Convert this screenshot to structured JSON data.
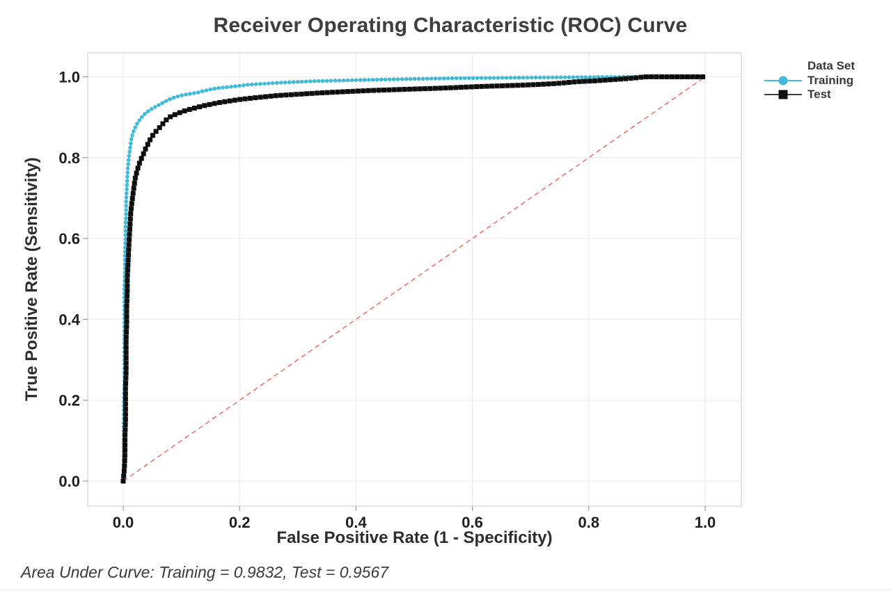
{
  "legend": {
    "title": "Data Set",
    "items": [
      {
        "label": "Training",
        "color": "#41b9d9",
        "line_color": "#41b9d9",
        "marker": "circle"
      },
      {
        "label": "Test",
        "color": "#111111",
        "line_color": "#3f3f3f",
        "marker": "square"
      }
    ]
  },
  "chart_data": {
    "type": "line",
    "title": "Receiver Operating Characteristic (ROC) Curve",
    "xlabel": "False Positive Rate (1 - Specificity)",
    "ylabel": "True Positive Rate (Sensitivity)",
    "annotation": "Area Under Curve: Training = 0.9832, Test = 0.9567",
    "auc": {
      "Training": 0.9832,
      "Test": 0.9567
    },
    "xlim": [
      0,
      1
    ],
    "ylim": [
      0,
      1
    ],
    "grid": true,
    "legend_position": "right",
    "xticks": [
      0.0,
      0.2,
      0.4,
      0.6,
      0.8,
      1.0
    ],
    "yticks": [
      0.0,
      0.2,
      0.4,
      0.6,
      0.8,
      1.0
    ],
    "xtick_labels": [
      "0.0",
      "0.2",
      "0.4",
      "0.6",
      "0.8",
      "1.0"
    ],
    "ytick_labels": [
      "0.0",
      "0.2",
      "0.4",
      "0.6",
      "0.8",
      "1.0"
    ],
    "reference_line": {
      "from": [
        0,
        0
      ],
      "to": [
        1,
        1
      ],
      "style": "dashed",
      "color": "#ee5451"
    },
    "colors": {
      "grid": "#eaeaea",
      "frame": "#c8c8c8",
      "tick": "#9a9a9a",
      "training": "#41b9d9",
      "test": "#0d0d0d",
      "reference": "#ee5451"
    },
    "series": [
      {
        "name": "Training",
        "color": "#41b9d9",
        "marker": "circle",
        "points": [
          [
            0,
            0
          ],
          [
            0.001,
            0.04
          ],
          [
            0.001,
            0.09
          ],
          [
            0.001,
            0.14
          ],
          [
            0.001,
            0.19
          ],
          [
            0.002,
            0.24
          ],
          [
            0.002,
            0.29
          ],
          [
            0.002,
            0.34
          ],
          [
            0.002,
            0.39
          ],
          [
            0.002,
            0.44
          ],
          [
            0.002,
            0.48
          ],
          [
            0.003,
            0.52
          ],
          [
            0.003,
            0.56
          ],
          [
            0.004,
            0.6
          ],
          [
            0.004,
            0.63
          ],
          [
            0.005,
            0.66
          ],
          [
            0.005,
            0.69
          ],
          [
            0.006,
            0.72
          ],
          [
            0.007,
            0.75
          ],
          [
            0.008,
            0.775
          ],
          [
            0.009,
            0.79
          ],
          [
            0.01,
            0.805
          ],
          [
            0.012,
            0.825
          ],
          [
            0.014,
            0.845
          ],
          [
            0.016,
            0.858
          ],
          [
            0.019,
            0.87
          ],
          [
            0.023,
            0.882
          ],
          [
            0.028,
            0.893
          ],
          [
            0.033,
            0.902
          ],
          [
            0.039,
            0.911
          ],
          [
            0.046,
            0.918
          ],
          [
            0.053,
            0.924
          ],
          [
            0.062,
            0.931
          ],
          [
            0.072,
            0.939
          ],
          [
            0.082,
            0.946
          ],
          [
            0.092,
            0.951
          ],
          [
            0.103,
            0.955
          ],
          [
            0.115,
            0.958
          ],
          [
            0.128,
            0.961
          ],
          [
            0.138,
            0.965
          ],
          [
            0.15,
            0.969
          ],
          [
            0.163,
            0.972
          ],
          [
            0.178,
            0.9745
          ],
          [
            0.195,
            0.977
          ],
          [
            0.215,
            0.9805
          ],
          [
            0.235,
            0.9825
          ],
          [
            0.258,
            0.9845
          ],
          [
            0.282,
            0.9865
          ],
          [
            0.307,
            0.988
          ],
          [
            0.333,
            0.9895
          ],
          [
            0.36,
            0.9905
          ],
          [
            0.39,
            0.9915
          ],
          [
            0.42,
            0.9925
          ],
          [
            0.455,
            0.9935
          ],
          [
            0.49,
            0.9945
          ],
          [
            0.53,
            0.9955
          ],
          [
            0.57,
            0.9965
          ],
          [
            0.61,
            0.997
          ],
          [
            0.65,
            0.9975
          ],
          [
            0.69,
            0.998
          ],
          [
            0.73,
            0.9985
          ],
          [
            0.77,
            0.999
          ],
          [
            0.8,
            0.9992
          ],
          [
            0.83,
            0.9996
          ],
          [
            0.86,
            1.0
          ],
          [
            0.89,
            1.0
          ],
          [
            1.0,
            1.0
          ]
        ]
      },
      {
        "name": "Test",
        "color": "#0d0d0d",
        "marker": "square",
        "points": [
          [
            0,
            0
          ],
          [
            0.002,
            0.03
          ],
          [
            0.003,
            0.07
          ],
          [
            0.003,
            0.11
          ],
          [
            0.004,
            0.15
          ],
          [
            0.004,
            0.19
          ],
          [
            0.004,
            0.23
          ],
          [
            0.005,
            0.27
          ],
          [
            0.005,
            0.31
          ],
          [
            0.005,
            0.35
          ],
          [
            0.006,
            0.39
          ],
          [
            0.006,
            0.43
          ],
          [
            0.007,
            0.47
          ],
          [
            0.007,
            0.5
          ],
          [
            0.008,
            0.53
          ],
          [
            0.009,
            0.56
          ],
          [
            0.01,
            0.59
          ],
          [
            0.011,
            0.615
          ],
          [
            0.012,
            0.64
          ],
          [
            0.013,
            0.665
          ],
          [
            0.015,
            0.69
          ],
          [
            0.017,
            0.712
          ],
          [
            0.019,
            0.733
          ],
          [
            0.021,
            0.752
          ],
          [
            0.024,
            0.768
          ],
          [
            0.027,
            0.783
          ],
          [
            0.031,
            0.797
          ],
          [
            0.035,
            0.81
          ],
          [
            0.039,
            0.824
          ],
          [
            0.044,
            0.838
          ],
          [
            0.049,
            0.852
          ],
          [
            0.055,
            0.863
          ],
          [
            0.061,
            0.872
          ],
          [
            0.067,
            0.882
          ],
          [
            0.073,
            0.892
          ],
          [
            0.078,
            0.899
          ],
          [
            0.085,
            0.904
          ],
          [
            0.093,
            0.909
          ],
          [
            0.102,
            0.914
          ],
          [
            0.113,
            0.919
          ],
          [
            0.126,
            0.924
          ],
          [
            0.14,
            0.929
          ],
          [
            0.155,
            0.9335
          ],
          [
            0.17,
            0.9375
          ],
          [
            0.186,
            0.941
          ],
          [
            0.203,
            0.9445
          ],
          [
            0.222,
            0.9475
          ],
          [
            0.242,
            0.9505
          ],
          [
            0.263,
            0.9535
          ],
          [
            0.285,
            0.9555
          ],
          [
            0.308,
            0.9575
          ],
          [
            0.335,
            0.96
          ],
          [
            0.363,
            0.962
          ],
          [
            0.392,
            0.964
          ],
          [
            0.422,
            0.966
          ],
          [
            0.452,
            0.9675
          ],
          [
            0.483,
            0.969
          ],
          [
            0.515,
            0.9705
          ],
          [
            0.548,
            0.972
          ],
          [
            0.58,
            0.974
          ],
          [
            0.612,
            0.976
          ],
          [
            0.645,
            0.9775
          ],
          [
            0.678,
            0.979
          ],
          [
            0.712,
            0.981
          ],
          [
            0.745,
            0.9835
          ],
          [
            0.78,
            0.988
          ],
          [
            0.81,
            0.99
          ],
          [
            0.84,
            0.993
          ],
          [
            0.86,
            0.995
          ],
          [
            0.878,
            0.997
          ],
          [
            0.89,
            0.999
          ],
          [
            0.9,
            1.0
          ],
          [
            1.0,
            1.0
          ]
        ]
      }
    ]
  }
}
